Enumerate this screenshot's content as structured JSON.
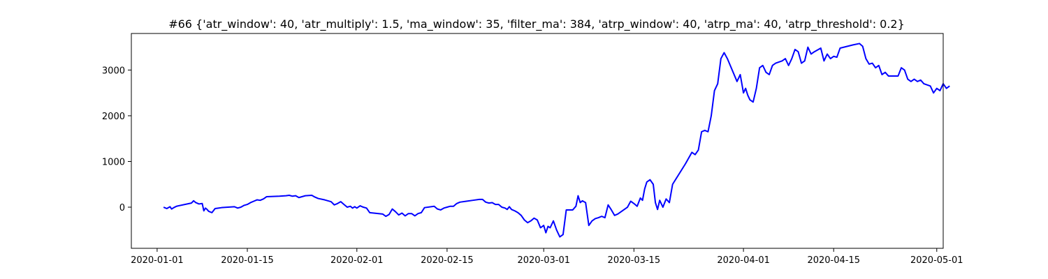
{
  "chart_data": {
    "type": "line",
    "title": "#66 {'atr_window': 40, 'atr_multiply': 1.5, 'ma_window': 35, 'filter_ma': 384, 'atrp_window': 40, 'atrp_ma': 40, 'atrp_threshold': 0.2}",
    "xlabel": "",
    "ylabel": "",
    "x_type": "date",
    "xlim": [
      "2019-12-28",
      "2020-05-02"
    ],
    "ylim": [
      -900,
      3800
    ],
    "grid": false,
    "legend": "none",
    "x_ticks": [
      "2020-01-01",
      "2020-01-15",
      "2020-02-01",
      "2020-02-15",
      "2020-03-01",
      "2020-03-15",
      "2020-04-01",
      "2020-04-15",
      "2020-05-01"
    ],
    "y_ticks": [
      0,
      1000,
      2000,
      3000
    ],
    "series": [
      {
        "color": "#0000ff",
        "points": [
          [
            "2020-01-02",
            0
          ],
          [
            "2020-01-02 12:00",
            -30
          ],
          [
            "2020-01-03",
            10
          ],
          [
            "2020-01-03 06:00",
            -40
          ],
          [
            "2020-01-03 14:00",
            -10
          ],
          [
            "2020-01-04",
            20
          ],
          [
            "2020-01-06",
            80
          ],
          [
            "2020-01-06 08:00",
            90
          ],
          [
            "2020-01-06 16:00",
            140
          ],
          [
            "2020-01-07",
            100
          ],
          [
            "2020-01-07 12:00",
            70
          ],
          [
            "2020-01-08",
            80
          ],
          [
            "2020-01-08 06:00",
            -80
          ],
          [
            "2020-01-08 12:00",
            -20
          ],
          [
            "2020-01-08 18:00",
            -50
          ],
          [
            "2020-01-09",
            -90
          ],
          [
            "2020-01-09 12:00",
            -120
          ],
          [
            "2020-01-10",
            -30
          ],
          [
            "2020-01-10 12:00",
            -20
          ],
          [
            "2020-01-11",
            -10
          ],
          [
            "2020-01-13",
            10
          ],
          [
            "2020-01-13 12:00",
            -20
          ],
          [
            "2020-01-14",
            0
          ],
          [
            "2020-01-14 12:00",
            40
          ],
          [
            "2020-01-15",
            60
          ],
          [
            "2020-01-15 12:00",
            100
          ],
          [
            "2020-01-16",
            130
          ],
          [
            "2020-01-16 12:00",
            160
          ],
          [
            "2020-01-17",
            150
          ],
          [
            "2020-01-17 12:00",
            180
          ],
          [
            "2020-01-18",
            230
          ],
          [
            "2020-01-20",
            240
          ],
          [
            "2020-01-21",
            250
          ],
          [
            "2020-01-21 12:00",
            260
          ],
          [
            "2020-01-22",
            240
          ],
          [
            "2020-01-22 12:00",
            250
          ],
          [
            "2020-01-23",
            210
          ],
          [
            "2020-01-24",
            250
          ],
          [
            "2020-01-25",
            260
          ],
          [
            "2020-01-25 12:00",
            220
          ],
          [
            "2020-01-26",
            190
          ],
          [
            "2020-01-27",
            160
          ],
          [
            "2020-01-28",
            120
          ],
          [
            "2020-01-28 12:00",
            50
          ],
          [
            "2020-01-29",
            80
          ],
          [
            "2020-01-29 12:00",
            120
          ],
          [
            "2020-01-30",
            60
          ],
          [
            "2020-01-30 12:00",
            0
          ],
          [
            "2020-01-31",
            20
          ],
          [
            "2020-01-31 08:00",
            -20
          ],
          [
            "2020-01-31 16:00",
            10
          ],
          [
            "2020-02-01",
            -20
          ],
          [
            "2020-02-01 12:00",
            30
          ],
          [
            "2020-02-02",
            0
          ],
          [
            "2020-02-02 12:00",
            -20
          ],
          [
            "2020-02-03",
            -120
          ],
          [
            "2020-02-05",
            -150
          ],
          [
            "2020-02-05 12:00",
            -200
          ],
          [
            "2020-02-06",
            -160
          ],
          [
            "2020-02-06 12:00",
            -40
          ],
          [
            "2020-02-07",
            -100
          ],
          [
            "2020-02-07 12:00",
            -170
          ],
          [
            "2020-02-08",
            -130
          ],
          [
            "2020-02-08 12:00",
            -190
          ],
          [
            "2020-02-09",
            -140
          ],
          [
            "2020-02-09 12:00",
            -140
          ],
          [
            "2020-02-10",
            -190
          ],
          [
            "2020-02-10 12:00",
            -140
          ],
          [
            "2020-02-11",
            -120
          ],
          [
            "2020-02-11 12:00",
            -10
          ],
          [
            "2020-02-13",
            20
          ],
          [
            "2020-02-13 12:00",
            -40
          ],
          [
            "2020-02-14",
            -60
          ],
          [
            "2020-02-14 12:00",
            -20
          ],
          [
            "2020-02-15",
            0
          ],
          [
            "2020-02-15 12:00",
            20
          ],
          [
            "2020-02-16",
            20
          ],
          [
            "2020-02-16 12:00",
            80
          ],
          [
            "2020-02-17",
            110
          ],
          [
            "2020-02-18",
            130
          ],
          [
            "2020-02-19",
            150
          ],
          [
            "2020-02-20",
            170
          ],
          [
            "2020-02-20 12:00",
            170
          ],
          [
            "2020-02-21",
            110
          ],
          [
            "2020-02-21 12:00",
            90
          ],
          [
            "2020-02-22",
            100
          ],
          [
            "2020-02-22 12:00",
            60
          ],
          [
            "2020-02-23",
            60
          ],
          [
            "2020-02-23 12:00",
            0
          ],
          [
            "2020-02-24",
            -20
          ],
          [
            "2020-02-24 08:00",
            -50
          ],
          [
            "2020-02-24 16:00",
            10
          ],
          [
            "2020-02-25",
            -50
          ],
          [
            "2020-02-25 12:00",
            -80
          ],
          [
            "2020-02-26",
            -120
          ],
          [
            "2020-02-26 12:00",
            -180
          ],
          [
            "2020-02-27",
            -280
          ],
          [
            "2020-02-27 12:00",
            -340
          ],
          [
            "2020-02-28",
            -300
          ],
          [
            "2020-02-28 12:00",
            -240
          ],
          [
            "2020-02-29",
            -280
          ],
          [
            "2020-02-29 12:00",
            -450
          ],
          [
            "2020-03-01",
            -400
          ],
          [
            "2020-03-01 08:00",
            -560
          ],
          [
            "2020-03-01 16:00",
            -420
          ],
          [
            "2020-03-02",
            -450
          ],
          [
            "2020-03-02 12:00",
            -300
          ],
          [
            "2020-03-03",
            -500
          ],
          [
            "2020-03-03 12:00",
            -650
          ],
          [
            "2020-03-04",
            -600
          ],
          [
            "2020-03-04 12:00",
            -60
          ],
          [
            "2020-03-05",
            -60
          ],
          [
            "2020-03-05 12:00",
            -60
          ],
          [
            "2020-03-06",
            20
          ],
          [
            "2020-03-06 08:00",
            250
          ],
          [
            "2020-03-06 16:00",
            100
          ],
          [
            "2020-03-07",
            140
          ],
          [
            "2020-03-07 12:00",
            100
          ],
          [
            "2020-03-08",
            -400
          ],
          [
            "2020-03-08 12:00",
            -300
          ],
          [
            "2020-03-09",
            -250
          ],
          [
            "2020-03-09 12:00",
            -230
          ],
          [
            "2020-03-10",
            -200
          ],
          [
            "2020-03-10 12:00",
            -230
          ],
          [
            "2020-03-11",
            50
          ],
          [
            "2020-03-11 12:00",
            -60
          ],
          [
            "2020-03-12",
            -180
          ],
          [
            "2020-03-12 12:00",
            -150
          ],
          [
            "2020-03-13",
            -100
          ],
          [
            "2020-03-14",
            0
          ],
          [
            "2020-03-14 12:00",
            130
          ],
          [
            "2020-03-15",
            80
          ],
          [
            "2020-03-15 12:00",
            20
          ],
          [
            "2020-03-16",
            200
          ],
          [
            "2020-03-16 08:00",
            150
          ],
          [
            "2020-03-16 16:00",
            400
          ],
          [
            "2020-03-17",
            550
          ],
          [
            "2020-03-17 12:00",
            600
          ],
          [
            "2020-03-18",
            500
          ],
          [
            "2020-03-18 08:00",
            100
          ],
          [
            "2020-03-18 16:00",
            -50
          ],
          [
            "2020-03-19",
            150
          ],
          [
            "2020-03-19 12:00",
            0
          ],
          [
            "2020-03-20",
            180
          ],
          [
            "2020-03-20 12:00",
            100
          ],
          [
            "2020-03-21",
            500
          ],
          [
            "2020-03-23",
            950
          ],
          [
            "2020-03-24",
            1200
          ],
          [
            "2020-03-24 12:00",
            1150
          ],
          [
            "2020-03-25",
            1250
          ],
          [
            "2020-03-25 12:00",
            1650
          ],
          [
            "2020-03-26",
            1680
          ],
          [
            "2020-03-26 12:00",
            1650
          ],
          [
            "2020-03-27",
            2000
          ],
          [
            "2020-03-27 12:00",
            2550
          ],
          [
            "2020-03-28",
            2700
          ],
          [
            "2020-03-28 12:00",
            3250
          ],
          [
            "2020-03-29",
            3380
          ],
          [
            "2020-03-29 12:00",
            3250
          ],
          [
            "2020-03-31",
            2750
          ],
          [
            "2020-03-31 12:00",
            2900
          ],
          [
            "2020-04-01",
            2500
          ],
          [
            "2020-04-01 08:00",
            2600
          ],
          [
            "2020-04-01 16:00",
            2450
          ],
          [
            "2020-04-02",
            2350
          ],
          [
            "2020-04-02 12:00",
            2300
          ],
          [
            "2020-04-03",
            2600
          ],
          [
            "2020-04-03 12:00",
            3050
          ],
          [
            "2020-04-04",
            3100
          ],
          [
            "2020-04-04 12:00",
            2950
          ],
          [
            "2020-04-05",
            2900
          ],
          [
            "2020-04-05 12:00",
            3100
          ],
          [
            "2020-04-06",
            3150
          ],
          [
            "2020-04-07",
            3200
          ],
          [
            "2020-04-07 12:00",
            3250
          ],
          [
            "2020-04-08",
            3100
          ],
          [
            "2020-04-08 12:00",
            3250
          ],
          [
            "2020-04-09",
            3450
          ],
          [
            "2020-04-09 12:00",
            3400
          ],
          [
            "2020-04-10",
            3150
          ],
          [
            "2020-04-10 12:00",
            3200
          ],
          [
            "2020-04-11",
            3500
          ],
          [
            "2020-04-11 12:00",
            3350
          ],
          [
            "2020-04-12",
            3400
          ],
          [
            "2020-04-13",
            3480
          ],
          [
            "2020-04-13 12:00",
            3200
          ],
          [
            "2020-04-14",
            3350
          ],
          [
            "2020-04-14 12:00",
            3250
          ],
          [
            "2020-04-15",
            3300
          ],
          [
            "2020-04-15 12:00",
            3280
          ],
          [
            "2020-04-16",
            3480
          ],
          [
            "2020-04-18",
            3550
          ],
          [
            "2020-04-19",
            3580
          ],
          [
            "2020-04-19 12:00",
            3520
          ],
          [
            "2020-04-20",
            3250
          ],
          [
            "2020-04-20 12:00",
            3130
          ],
          [
            "2020-04-21",
            3150
          ],
          [
            "2020-04-21 12:00",
            3050
          ],
          [
            "2020-04-22",
            3100
          ],
          [
            "2020-04-22 12:00",
            2900
          ],
          [
            "2020-04-23",
            2950
          ],
          [
            "2020-04-23 12:00",
            2870
          ],
          [
            "2020-04-24",
            2870
          ],
          [
            "2020-04-25",
            2870
          ],
          [
            "2020-04-25 12:00",
            3050
          ],
          [
            "2020-04-26",
            3000
          ],
          [
            "2020-04-26 12:00",
            2800
          ],
          [
            "2020-04-27",
            2750
          ],
          [
            "2020-04-27 12:00",
            2800
          ],
          [
            "2020-04-28",
            2750
          ],
          [
            "2020-04-28 12:00",
            2780
          ],
          [
            "2020-04-29",
            2700
          ],
          [
            "2020-04-30",
            2650
          ],
          [
            "2020-04-30 12:00",
            2500
          ],
          [
            "2020-05-01",
            2600
          ],
          [
            "2020-05-01 12:00",
            2550
          ],
          [
            "2020-05-02",
            2700
          ],
          [
            "2020-05-02 12:00",
            2600
          ],
          [
            "2020-05-03",
            2650
          ]
        ]
      }
    ]
  }
}
